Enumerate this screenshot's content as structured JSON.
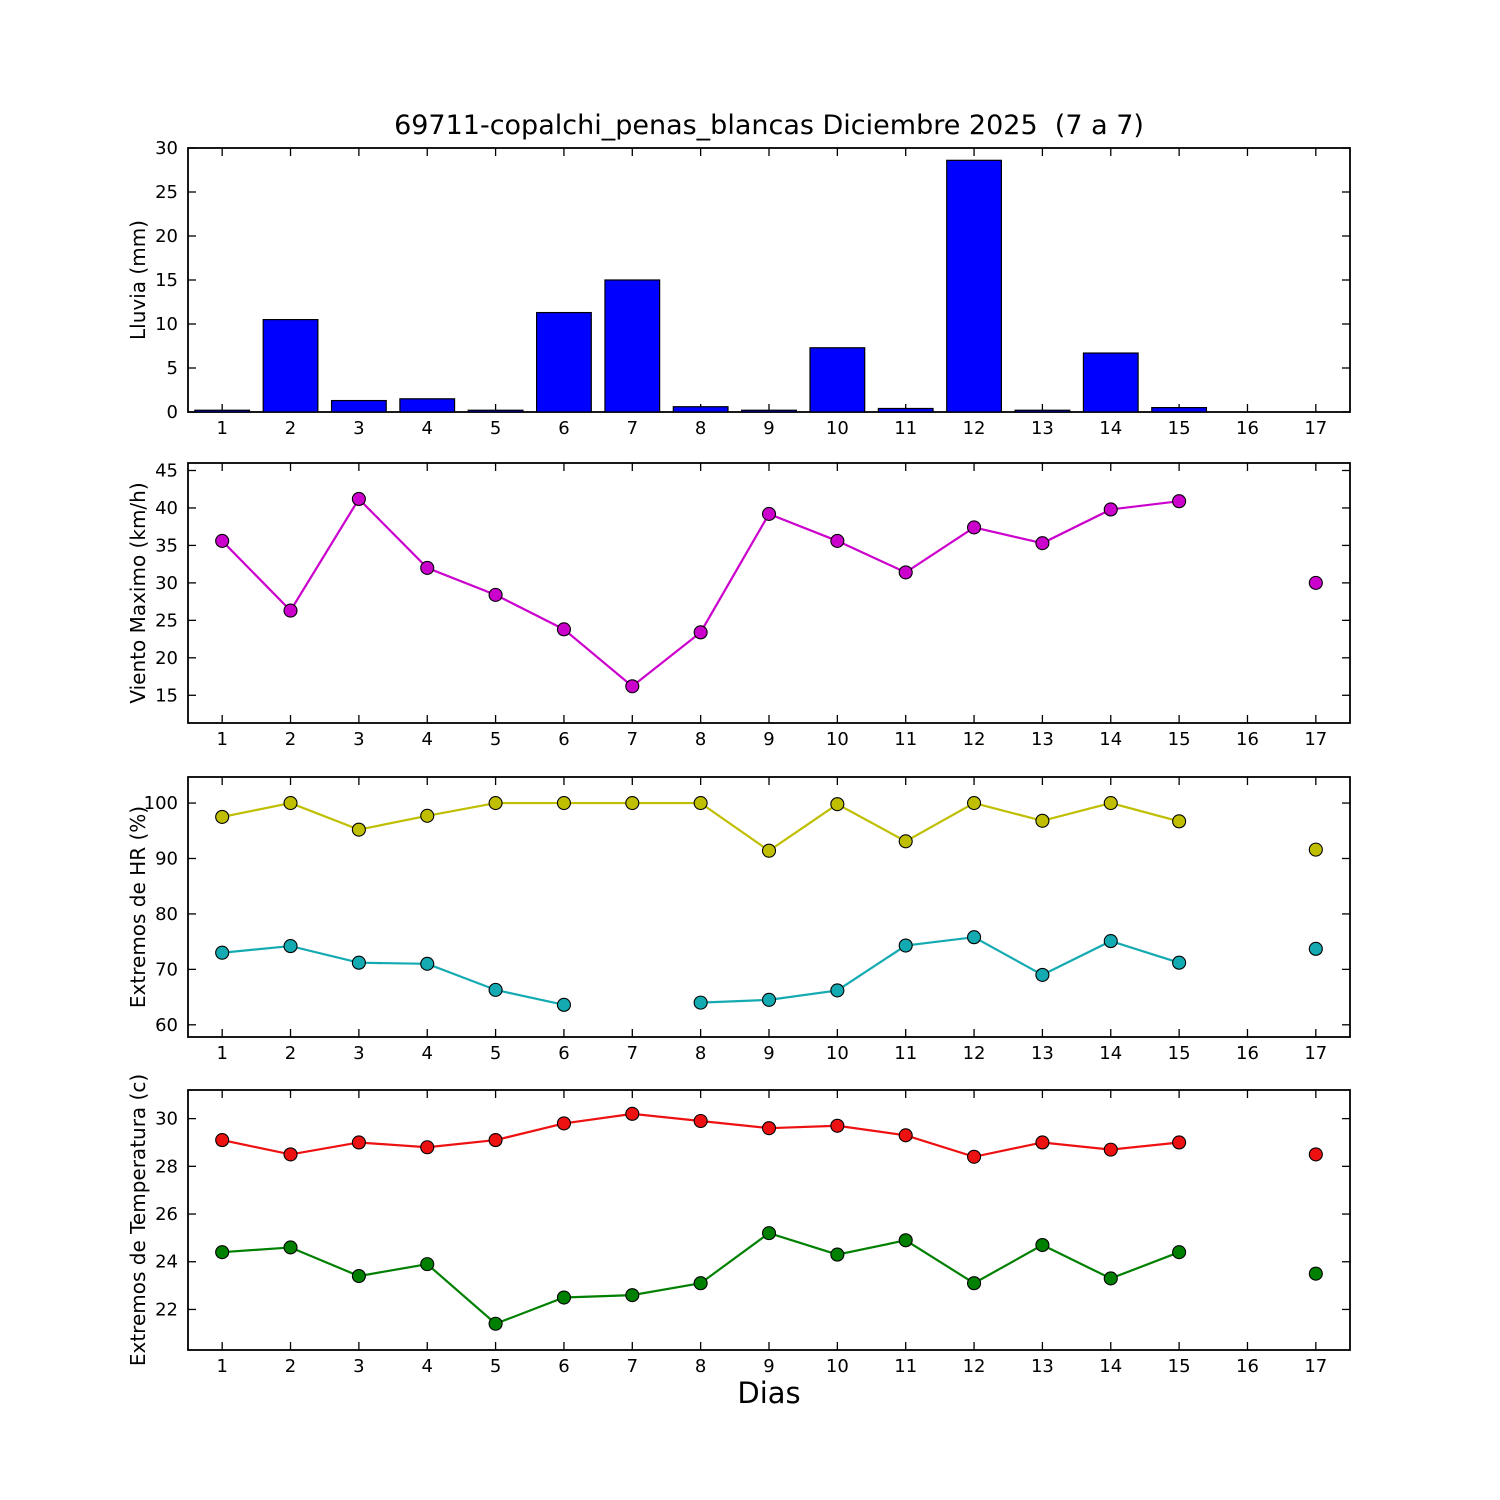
{
  "figure": {
    "title": "69711-copalchi_penas_blancas Diciembre 2025  (7 a 7)",
    "xlabel": "Dias",
    "background": "#ffffff"
  },
  "chart_data": [
    {
      "type": "bar",
      "name": "rain",
      "ylabel": "Lluvia (mm)",
      "categories": [
        1,
        2,
        3,
        4,
        5,
        6,
        7,
        8,
        9,
        10,
        11,
        12,
        13,
        14,
        15,
        16,
        17
      ],
      "values": [
        0.2,
        10.5,
        1.3,
        1.5,
        0.2,
        11.3,
        15.0,
        0.6,
        0.2,
        7.3,
        0.4,
        28.6,
        0.2,
        6.7,
        0.5,
        0,
        0
      ],
      "bar_color": "#0000ff",
      "bar_edge": "#000000",
      "ylim": [
        0,
        30
      ],
      "yticks": [
        0,
        5,
        10,
        15,
        20,
        25,
        30
      ],
      "grid": "off",
      "legend": "none"
    },
    {
      "type": "line",
      "name": "wind",
      "ylabel": "Viento Maximo (km/h)",
      "categories": [
        1,
        2,
        3,
        4,
        5,
        6,
        7,
        8,
        9,
        10,
        11,
        12,
        13,
        14,
        15,
        16,
        17
      ],
      "series": [
        {
          "name": "viento-maximo",
          "color": "#cc00cc",
          "values": [
            35.6,
            26.3,
            41.2,
            32.0,
            28.4,
            23.8,
            16.2,
            23.4,
            39.2,
            35.6,
            31.4,
            37.4,
            35.3,
            39.8,
            40.9,
            null,
            30.0
          ]
        }
      ],
      "ylim": [
        11.3,
        46.0
      ],
      "yticks": [
        15,
        20,
        25,
        30,
        35,
        40,
        45
      ],
      "grid": "off",
      "legend": "none"
    },
    {
      "type": "line",
      "name": "humidity",
      "ylabel": "Extremos de HR (%)",
      "categories": [
        1,
        2,
        3,
        4,
        5,
        6,
        7,
        8,
        9,
        10,
        11,
        12,
        13,
        14,
        15,
        16,
        17
      ],
      "series": [
        {
          "name": "hr-maxima",
          "color": "#bfbf00",
          "values": [
            97.5,
            100.0,
            95.2,
            97.7,
            100.0,
            100.0,
            100.0,
            100.0,
            91.4,
            99.8,
            93.1,
            100.0,
            96.8,
            100.0,
            96.7,
            null,
            91.6
          ]
        },
        {
          "name": "hr-minima",
          "color": "#14aab2",
          "values": [
            73.0,
            74.2,
            71.2,
            71.0,
            66.3,
            63.6,
            null,
            64.0,
            64.5,
            66.2,
            74.3,
            75.8,
            69.0,
            75.1,
            71.2,
            null,
            73.7
          ]
        }
      ],
      "ylim": [
        57.8,
        104.7
      ],
      "yticks": [
        60,
        70,
        80,
        90,
        100
      ],
      "grid": "off",
      "legend": "none"
    },
    {
      "type": "line",
      "name": "temperature",
      "ylabel": "Extremos de Temperatura (c)",
      "categories": [
        1,
        2,
        3,
        4,
        5,
        6,
        7,
        8,
        9,
        10,
        11,
        12,
        13,
        14,
        15,
        16,
        17
      ],
      "series": [
        {
          "name": "temp-maxima",
          "color": "#ee1111",
          "values": [
            29.1,
            28.5,
            29.0,
            28.8,
            29.1,
            29.8,
            30.2,
            29.9,
            29.6,
            29.7,
            29.3,
            28.4,
            29.0,
            28.7,
            29.0,
            null,
            28.5
          ]
        },
        {
          "name": "temp-minima",
          "color": "#008000",
          "values": [
            24.4,
            24.6,
            23.4,
            23.9,
            21.4,
            22.5,
            22.6,
            23.1,
            25.2,
            24.3,
            24.9,
            23.1,
            24.7,
            23.3,
            24.4,
            null,
            23.5
          ]
        }
      ],
      "ylim": [
        20.3,
        31.2
      ],
      "yticks": [
        22,
        24,
        26,
        28,
        30
      ],
      "grid": "off",
      "legend": "none"
    }
  ]
}
